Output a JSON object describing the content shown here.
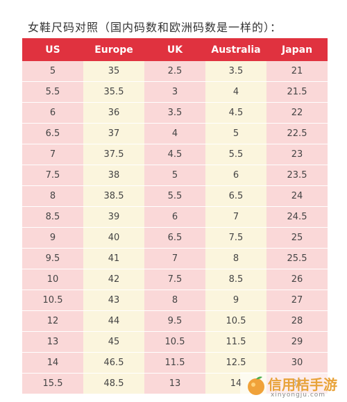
{
  "title": "女鞋尺码对照（国内码数和欧洲码数是一样的）：",
  "table": {
    "headers": [
      "US",
      "Europe",
      "UK",
      "Australia",
      "Japan"
    ],
    "rows": [
      [
        "5",
        "35",
        "2.5",
        "3.5",
        "21"
      ],
      [
        "5.5",
        "35.5",
        "3",
        "4",
        "21.5"
      ],
      [
        "6",
        "36",
        "3.5",
        "4.5",
        "22"
      ],
      [
        "6.5",
        "37",
        "4",
        "5",
        "22.5"
      ],
      [
        "7",
        "37.5",
        "4.5",
        "5.5",
        "23"
      ],
      [
        "7.5",
        "38",
        "5",
        "6",
        "23.5"
      ],
      [
        "8",
        "38.5",
        "5.5",
        "6.5",
        "24"
      ],
      [
        "8.5",
        "39",
        "6",
        "7",
        "24.5"
      ],
      [
        "9",
        "40",
        "6.5",
        "7.5",
        "25"
      ],
      [
        "9.5",
        "41",
        "7",
        "8",
        "25.5"
      ],
      [
        "10",
        "42",
        "7.5",
        "8.5",
        "26"
      ],
      [
        "10.5",
        "43",
        "8",
        "9",
        "27"
      ],
      [
        "12",
        "44",
        "9.5",
        "10.5",
        "28"
      ],
      [
        "13",
        "45",
        "10.5",
        "11.5",
        "29"
      ],
      [
        "14",
        "46.5",
        "11.5",
        "12.5",
        "30"
      ],
      [
        "15.5",
        "48.5",
        "13",
        "14",
        "31"
      ]
    ]
  },
  "colors": {
    "header_bg": "#e0323f",
    "pink_cell": "#fad8d8",
    "cream_cell": "#fbf5dd"
  },
  "watermark": {
    "brand": "信用桔手游",
    "url": "xinyongju.com",
    "icon": "orange-logo-icon"
  }
}
